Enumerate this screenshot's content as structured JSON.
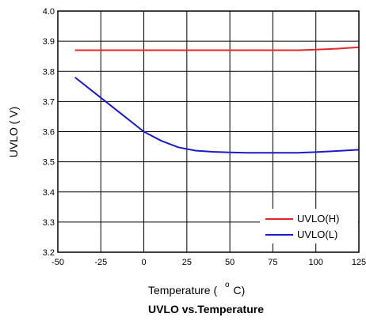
{
  "chart_data": {
    "type": "line",
    "title": "UVLO vs.Temperature",
    "xlabel_main": "Temperature (",
    "xlabel_degree": "o",
    "xlabel_unit": "C)",
    "ylabel": "UVLO ( V)",
    "xlim": [
      -50,
      125
    ],
    "ylim": [
      3.2,
      4.0
    ],
    "x_ticks": [
      -50,
      -25,
      0,
      25,
      50,
      75,
      100,
      125
    ],
    "y_ticks": [
      "3.2",
      "3.3",
      "3.4",
      "3.5",
      "3.6",
      "3.7",
      "3.8",
      "3.9",
      "4.0"
    ],
    "grid": true,
    "legend_position": "bottom-right",
    "series": [
      {
        "name": "UVLO(H)",
        "color": "#e8262a",
        "x": [
          -40,
          -25,
          0,
          25,
          50,
          75,
          90,
          100,
          112,
          125
        ],
        "y": [
          3.87,
          3.87,
          3.87,
          3.87,
          3.87,
          3.87,
          3.87,
          3.872,
          3.875,
          3.88
        ]
      },
      {
        "name": "UVLO(L)",
        "color": "#1a1acc",
        "x": [
          -40,
          -30,
          -20,
          -10,
          0,
          10,
          20,
          30,
          40,
          50,
          60,
          70,
          80,
          90,
          100,
          110,
          125
        ],
        "y": [
          3.78,
          3.735,
          3.69,
          3.645,
          3.6,
          3.57,
          3.548,
          3.537,
          3.533,
          3.531,
          3.53,
          3.53,
          3.53,
          3.53,
          3.532,
          3.535,
          3.54
        ]
      }
    ]
  }
}
